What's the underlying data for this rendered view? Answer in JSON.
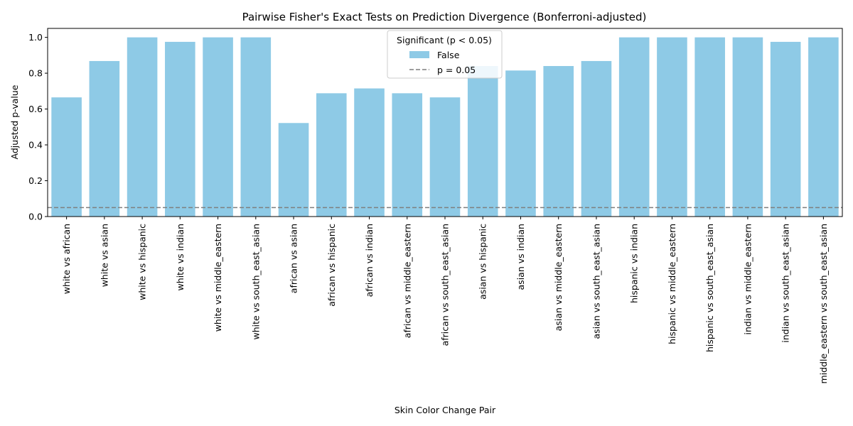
{
  "chart_data": {
    "type": "bar",
    "title": "Pairwise Fisher's Exact Tests on Prediction Divergence (Bonferroni-adjusted)",
    "xlabel": "Skin Color Change Pair",
    "ylabel": "Adjusted p-value",
    "ylim": [
      0,
      1.05
    ],
    "yticks": [
      "0.0",
      "0.2",
      "0.4",
      "0.6",
      "0.8",
      "1.0"
    ],
    "categories": [
      "white vs african",
      "white vs asian",
      "white vs hispanic",
      "white vs indian",
      "white vs middle_eastern",
      "white vs south_east_asian",
      "african vs asian",
      "african vs hispanic",
      "african vs indian",
      "african vs middle_eastern",
      "african vs south_east_asian",
      "asian vs hispanic",
      "asian vs indian",
      "asian vs middle_eastern",
      "asian vs south_east_asian",
      "hispanic vs indian",
      "hispanic vs middle_eastern",
      "hispanic vs south_east_asian",
      "indian vs middle_eastern",
      "indian vs south_east_asian",
      "middle_eastern vs south_east_asian"
    ],
    "series": [
      {
        "name": "False",
        "color": "#8ecae6",
        "values": [
          0.665,
          0.868,
          1.0,
          0.975,
          1.0,
          1.0,
          0.522,
          0.688,
          0.715,
          0.688,
          0.665,
          0.84,
          0.815,
          0.84,
          0.868,
          1.0,
          1.0,
          1.0,
          1.0,
          0.975,
          1.0
        ]
      }
    ],
    "reference_line": {
      "value": 0.05,
      "label": "p = 0.05",
      "color": "#7f7f7f",
      "style": "dashed"
    },
    "legend": {
      "title": "Significant (p < 0.05)",
      "placement": "top-center"
    },
    "grid": false
  }
}
